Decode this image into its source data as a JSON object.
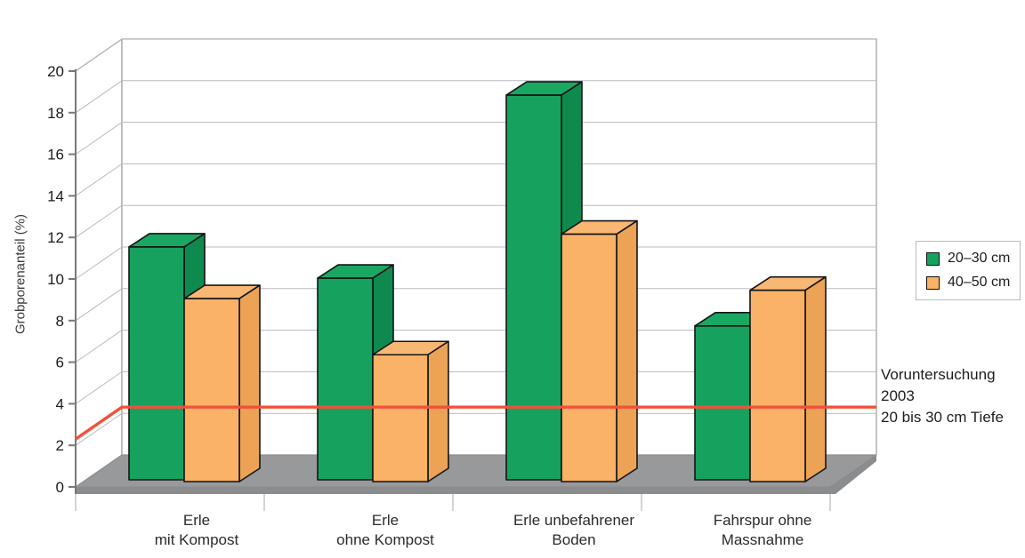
{
  "chart_data": {
    "type": "bar",
    "projection": "3d-column",
    "title": "",
    "ylabel": "Grobporenanteil (%)",
    "xlabel": "",
    "ylim": [
      0,
      20
    ],
    "y_tick_step": 2,
    "grid": true,
    "legend_position": "right",
    "categories": [
      {
        "line1": "Erle",
        "line2": "mit Kompost"
      },
      {
        "line1": "Erle",
        "line2": "ohne Kompost"
      },
      {
        "line1": "Erle unbefahrener",
        "line2": "Boden"
      },
      {
        "line1": "Fahrspur ohne",
        "line2": "Massnahme"
      }
    ],
    "series": [
      {
        "name": "20–30 cm",
        "color": "#17a15e",
        "side_color": "#0e8a4f",
        "top_color": "#19a862",
        "values": [
          11.2,
          9.7,
          18.5,
          7.4
        ]
      },
      {
        "name": "40–50 cm",
        "color": "#f9b266",
        "side_color": "#eca355",
        "top_color": "#f8b873",
        "values": [
          8.8,
          6.1,
          11.9,
          9.2
        ]
      }
    ],
    "reference_line": {
      "value": 2.3,
      "color": "#f2503a",
      "label_lines": [
        "Voruntersuchung",
        "2003",
        "20 bis 30 cm Tiefe"
      ]
    }
  },
  "colors": {
    "background": "#ffffff",
    "wall_fill": "#ffffff",
    "wall_edge": "#a2a3a5",
    "floor_fill": "#98999b",
    "floor_edge_fill": "#8b8c8e",
    "gridline": "#b9bac0",
    "axis": "#77787b",
    "bar_outline": "#141414",
    "tick_text": "#1c1c1c",
    "category_text": "#2b2b2b"
  }
}
